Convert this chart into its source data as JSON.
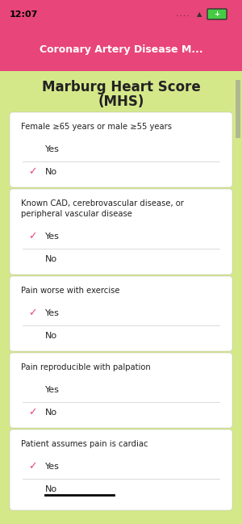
{
  "title_line1": "Marburg Heart Score",
  "title_line2": "(MHS)",
  "nav_title": "Coronary Artery Disease M...",
  "status_time": "12:07",
  "bg_color": "#d4e88a",
  "header_color": "#e8457a",
  "card_color": "#ffffff",
  "check_color": "#e8457a",
  "text_color": "#222222",
  "nav_text_color": "#ffffff",
  "questions": [
    {
      "label": "Female ≥65 years or male ≥55 years",
      "options": [
        "Yes",
        "No"
      ],
      "checked": 1
    },
    {
      "label": "Known CAD, cerebrovascular disease, or\nperipheral vascular disease",
      "options": [
        "Yes",
        "No"
      ],
      "checked": 0
    },
    {
      "label": "Pain worse with exercise",
      "options": [
        "Yes",
        "No"
      ],
      "checked": 0
    },
    {
      "label": "Pain reproducible with palpation",
      "options": [
        "Yes",
        "No"
      ],
      "checked": 1
    },
    {
      "label": "Patient assumes pain is cardiac",
      "options": [
        "Yes",
        "No"
      ],
      "checked": 0,
      "last_underline": true
    }
  ]
}
